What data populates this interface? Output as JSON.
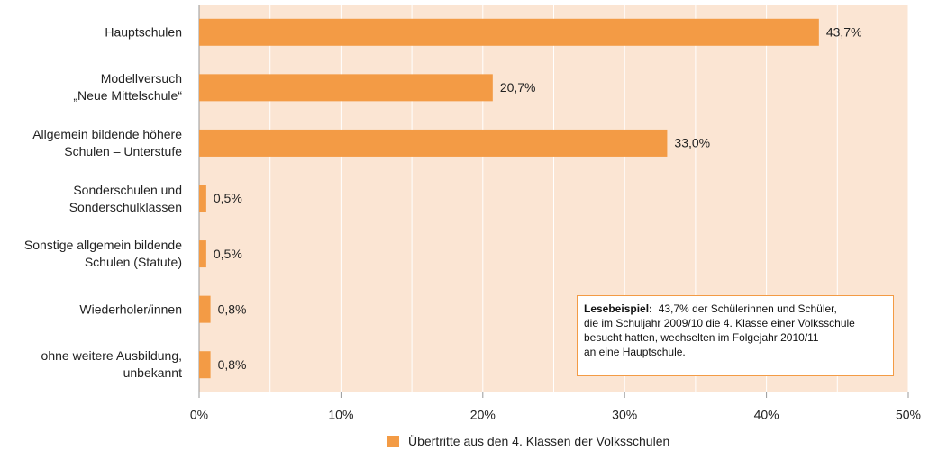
{
  "chart_data": {
    "type": "barh",
    "categories": [
      "Hauptschulen",
      "Modellversuch\n„Neue Mittelschule“",
      "Allgemein bildende höhere\nSchulen – Unterstufe",
      "Sonderschulen und\nSonderschulklassen",
      "Sonstige allgemein bildende\nSchulen (Statute)",
      "Wiederholer/innen",
      "ohne weitere Ausbildung,\nunbekannt"
    ],
    "series": [
      {
        "name": "Übertritte aus den 4. Klassen der Volksschulen",
        "color": "#f39b45",
        "values": [
          43.7,
          20.7,
          33.0,
          0.5,
          0.5,
          0.8,
          0.8
        ],
        "value_labels": [
          "43,7%",
          "20,7%",
          "33,0%",
          "0,5%",
          "0,5%",
          "0,8%",
          "0,8%"
        ]
      }
    ],
    "xlim": [
      0,
      50
    ],
    "xticks": [
      {
        "value": 0,
        "label": "0%"
      },
      {
        "value": 10,
        "label": "10%"
      },
      {
        "value": 20,
        "label": "20%"
      },
      {
        "value": 30,
        "label": "30%"
      },
      {
        "value": 40,
        "label": "40%"
      },
      {
        "value": 50,
        "label": "50%"
      }
    ],
    "minor_xticks": [
      5,
      15,
      25,
      35,
      45
    ],
    "grid": true,
    "legend": "bottom",
    "annotation": {
      "title": "Lesebeispiel:",
      "text": "43,7% der Schülerinnen und Schüler,\ndie im Schuljahr 2009/10 die 4. Klasse einer Volksschule\nbesucht hatten, wechselten im Folgejahr 2010/11\nan eine Hauptschule."
    }
  }
}
